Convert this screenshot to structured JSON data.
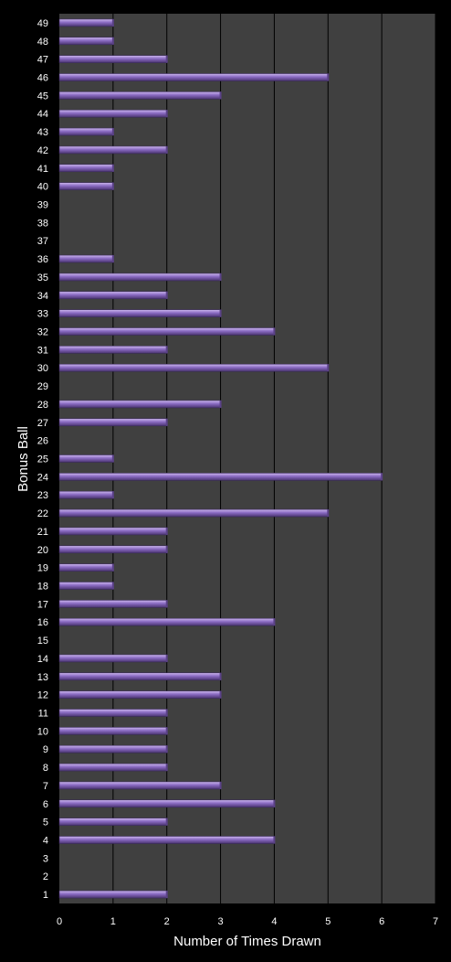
{
  "chart_data": {
    "type": "bar",
    "orientation": "horizontal",
    "xlabel": "Number of Times Drawn",
    "ylabel": "Bonus Ball",
    "xlim": [
      0,
      7
    ],
    "xticks": [
      0,
      1,
      2,
      3,
      4,
      5,
      6,
      7
    ],
    "grid": "vertical lines",
    "legend": "none",
    "colors": {
      "background": "#000000",
      "plot_area": "#404040",
      "bar": "#8a6bc2",
      "bar_highlight": "#cdb8ef",
      "bar_shadow": "#4a3470",
      "grid": "#000000"
    },
    "categories": [
      "1",
      "2",
      "3",
      "4",
      "5",
      "6",
      "7",
      "8",
      "9",
      "10",
      "11",
      "12",
      "13",
      "14",
      "15",
      "16",
      "17",
      "18",
      "19",
      "20",
      "21",
      "22",
      "23",
      "24",
      "25",
      "26",
      "27",
      "28",
      "29",
      "30",
      "31",
      "32",
      "33",
      "34",
      "35",
      "36",
      "37",
      "38",
      "39",
      "40",
      "41",
      "42",
      "43",
      "44",
      "45",
      "46",
      "47",
      "48",
      "49"
    ],
    "values": [
      2,
      0,
      0,
      4,
      2,
      4,
      3,
      2,
      2,
      2,
      2,
      3,
      3,
      2,
      0,
      4,
      2,
      1,
      1,
      2,
      2,
      5,
      1,
      6,
      1,
      0,
      2,
      3,
      0,
      5,
      2,
      4,
      3,
      2,
      3,
      1,
      0,
      0,
      0,
      1,
      1,
      2,
      1,
      2,
      3,
      5,
      2,
      1,
      1
    ]
  }
}
